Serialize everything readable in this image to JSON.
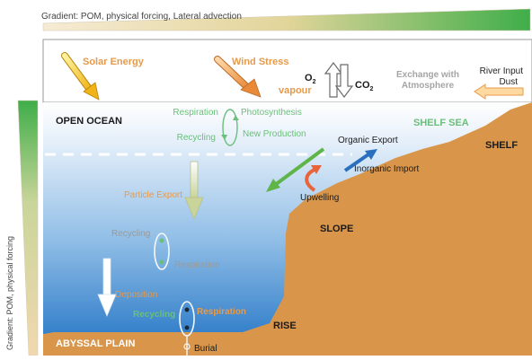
{
  "gradients": {
    "top_label": "Gradient: POM, physical forcing, Lateral advection",
    "side_label": "Gradient: POM, physical forcing"
  },
  "atmosphere": {
    "solar_energy": "Solar Energy",
    "wind_stress": "Wind Stress",
    "o2": "O",
    "o2_sub": "2",
    "co2": "CO",
    "co2_sub": "2",
    "vapour": "vapour",
    "exchange_line1": "Exchange with",
    "exchange_line2": "Atmosphere",
    "river_line1": "River Input",
    "river_line2": "Dust"
  },
  "regions": {
    "open_ocean": "OPEN OCEAN",
    "shelf_sea": "SHELF SEA",
    "shelf": "SHELF",
    "slope": "SLOPE",
    "rise": "RISE",
    "abyssal_plain": "ABYSSAL PLAIN"
  },
  "processes": {
    "respiration_top": "Respiration",
    "photosynthesis": "Photosynthesis",
    "recycling_top": "Recycling",
    "new_production": "New Production",
    "organic_export": "Organic Export",
    "inorganic_import": "Inorganic Import",
    "upwelling": "Upwelling",
    "particle_export": "Particle Export",
    "recycling_mid": "Recycling",
    "respiration_mid": "Respiration",
    "deposition": "Deposition",
    "recycling_bottom": "Recycling",
    "respiration_bottom": "Respiration",
    "burial": "Burial"
  },
  "colors": {
    "ocean_top": "#ffffff",
    "ocean_bottom": "#1f72c4",
    "seabed": "#d9964a",
    "gradient_green": "#3fae49",
    "gradient_sand": "#f2d8ae",
    "label_green": "#6bbf7a",
    "label_orange": "#e79a4a"
  }
}
